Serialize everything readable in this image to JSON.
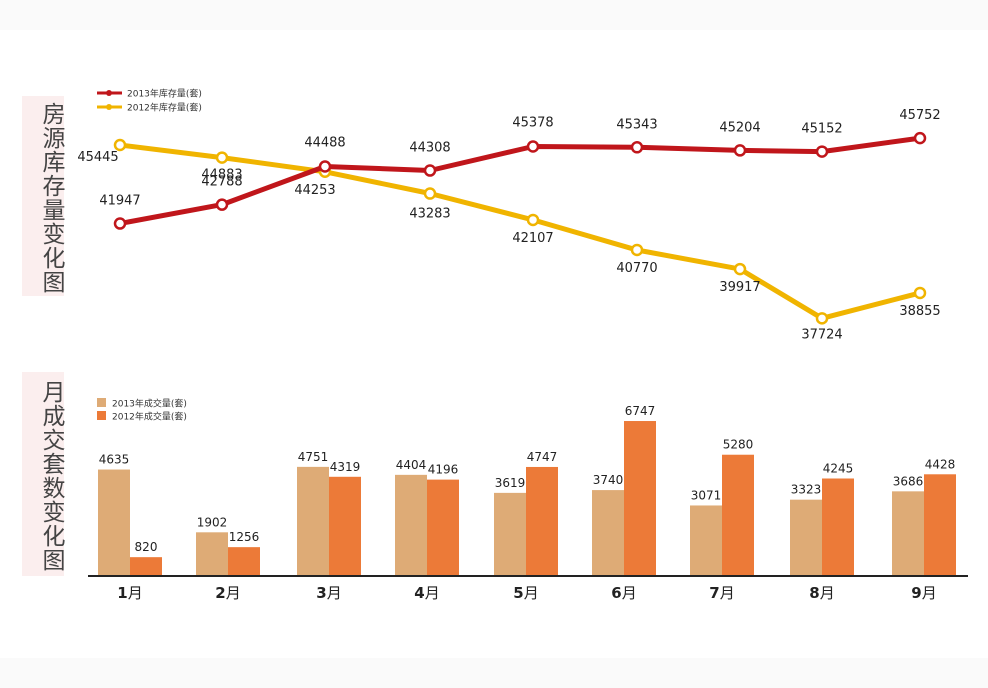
{
  "inventory_panel_label": "房源库存量变化图",
  "sales_panel_label": "月成交套数变化图",
  "colors": {
    "inv_2013": "#c0161b",
    "inv_2012": "#f0b400",
    "sales_2013": "#deab76",
    "sales_2012": "#ec7a38"
  },
  "chart_data": [
    {
      "type": "line",
      "categories": [
        "1月",
        "2月",
        "3月",
        "4月",
        "5月",
        "6月",
        "7月",
        "8月",
        "9月"
      ],
      "series": [
        {
          "name": "2013年库存量(套)",
          "values": [
            41947,
            42788,
            44488,
            44308,
            45378,
            45343,
            45204,
            45152,
            45752
          ]
        },
        {
          "name": "2012年库存量(套)",
          "values": [
            45445,
            44883,
            44253,
            43283,
            42107,
            40770,
            39917,
            37724,
            38855
          ]
        }
      ],
      "legend": "top-left",
      "grid": false
    },
    {
      "type": "bar",
      "categories": [
        "1月",
        "2月",
        "3月",
        "4月",
        "5月",
        "6月",
        "7月",
        "8月",
        "9月"
      ],
      "series": [
        {
          "name": "2013年成交量(套)",
          "values": [
            4635,
            1902,
            4751,
            4404,
            3619,
            3740,
            3071,
            3323,
            3686
          ]
        },
        {
          "name": "2012年成交量(套)",
          "values": [
            820,
            1256,
            4319,
            4196,
            4747,
            6747,
            5280,
            4245,
            4428
          ]
        }
      ],
      "legend": "top-left",
      "grid": false
    }
  ]
}
